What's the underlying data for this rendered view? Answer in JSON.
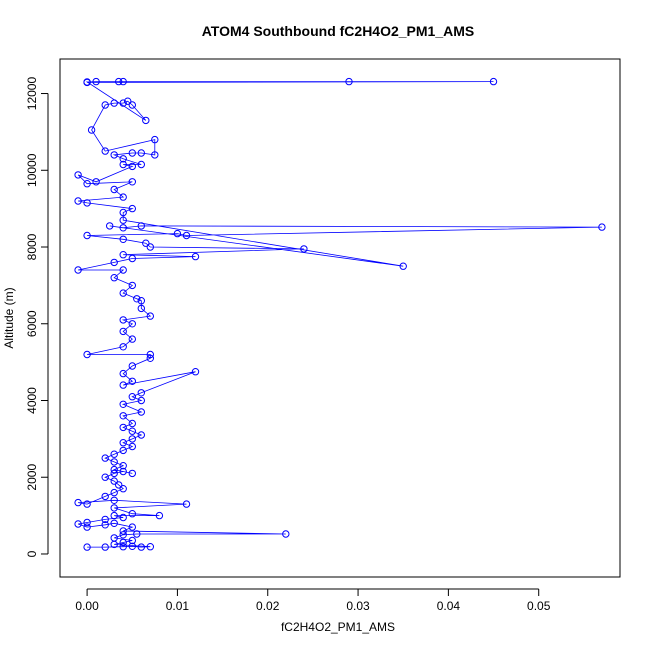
{
  "chart_data": {
    "type": "scatter",
    "title": "ATOM4 Southbound fC2H4O2_PM1_AMS",
    "xlabel": "fC2H4O2_PM1_AMS",
    "ylabel": "Altitude (m)",
    "xlim": [
      -0.003,
      0.059
    ],
    "ylim": [
      -600,
      12900
    ],
    "x_ticks": [
      0.0,
      0.01,
      0.02,
      0.03,
      0.04,
      0.05
    ],
    "x_tick_labels": [
      "0.00",
      "0.01",
      "0.02",
      "0.03",
      "0.04",
      "0.05"
    ],
    "y_ticks": [
      0,
      2000,
      4000,
      6000,
      8000,
      10000,
      12000
    ],
    "y_tick_labels": [
      "0",
      "2000",
      "4000",
      "6000",
      "8000",
      "10000",
      "12000"
    ],
    "grid": false,
    "legend": "none",
    "series": [
      {
        "color": "#0000ff",
        "marker": "open-circle",
        "connected": true,
        "points": [
          [
            0.0,
            180
          ],
          [
            0.002,
            180
          ],
          [
            0.004,
            190
          ],
          [
            0.005,
            200
          ],
          [
            0.006,
            180
          ],
          [
            0.007,
            190
          ],
          [
            0.003,
            250
          ],
          [
            0.004,
            300
          ],
          [
            0.005,
            350
          ],
          [
            0.003,
            420
          ],
          [
            0.004,
            500
          ],
          [
            0.0055,
            520
          ],
          [
            0.022,
            520
          ],
          [
            0.004,
            600
          ],
          [
            0.005,
            700
          ],
          [
            0.003,
            800
          ],
          [
            0.002,
            760
          ],
          [
            0.0,
            700
          ],
          [
            -0.001,
            780
          ],
          [
            0.0,
            820
          ],
          [
            0.002,
            900
          ],
          [
            0.004,
            950
          ],
          [
            0.003,
            1000
          ],
          [
            0.008,
            1000
          ],
          [
            0.005,
            1050
          ],
          [
            0.003,
            1200
          ],
          [
            0.011,
            1300
          ],
          [
            0.003,
            1400
          ],
          [
            -0.001,
            1340
          ],
          [
            0.0,
            1300
          ],
          [
            0.002,
            1500
          ],
          [
            0.003,
            1600
          ],
          [
            0.004,
            1700
          ],
          [
            0.0035,
            1800
          ],
          [
            0.003,
            1900
          ],
          [
            0.002,
            2000
          ],
          [
            0.003,
            2100
          ],
          [
            0.004,
            2150
          ],
          [
            0.005,
            2100
          ],
          [
            0.003,
            2200
          ],
          [
            0.004,
            2300
          ],
          [
            0.003,
            2400
          ],
          [
            0.002,
            2500
          ],
          [
            0.003,
            2600
          ],
          [
            0.004,
            2700
          ],
          [
            0.005,
            2800
          ],
          [
            0.004,
            2900
          ],
          [
            0.005,
            3000
          ],
          [
            0.006,
            3100
          ],
          [
            0.005,
            3200
          ],
          [
            0.004,
            3300
          ],
          [
            0.005,
            3400
          ],
          [
            0.004,
            3600
          ],
          [
            0.006,
            3700
          ],
          [
            0.004,
            3900
          ],
          [
            0.006,
            4000
          ],
          [
            0.005,
            4100
          ],
          [
            0.006,
            4200
          ],
          [
            0.012,
            4750
          ],
          [
            0.004,
            4400
          ],
          [
            0.005,
            4500
          ],
          [
            0.004,
            4700
          ],
          [
            0.005,
            4900
          ],
          [
            0.007,
            5100
          ],
          [
            0.007,
            5200
          ],
          [
            0.0,
            5200
          ],
          [
            0.004,
            5400
          ],
          [
            0.005,
            5600
          ],
          [
            0.004,
            5800
          ],
          [
            0.005,
            6000
          ],
          [
            0.004,
            6100
          ],
          [
            0.007,
            6200
          ],
          [
            0.006,
            6400
          ],
          [
            0.006,
            6600
          ],
          [
            0.0055,
            6650
          ],
          [
            0.004,
            6800
          ],
          [
            0.005,
            7000
          ],
          [
            0.003,
            7200
          ],
          [
            0.004,
            7400
          ],
          [
            -0.001,
            7400
          ],
          [
            0.003,
            7600
          ],
          [
            0.005,
            7700
          ],
          [
            0.012,
            7750
          ],
          [
            0.004,
            7800
          ],
          [
            0.024,
            7950
          ],
          [
            0.007,
            8000
          ],
          [
            0.0065,
            8100
          ],
          [
            0.004,
            8200
          ],
          [
            0.0,
            8300
          ],
          [
            0.01,
            8350
          ],
          [
            0.011,
            8300
          ],
          [
            0.057,
            8520
          ],
          [
            0.006,
            8550
          ],
          [
            0.004,
            8500
          ],
          [
            0.0025,
            8550
          ],
          [
            0.035,
            7500
          ],
          [
            0.004,
            8700
          ],
          [
            0.004,
            8900
          ],
          [
            0.005,
            9000
          ],
          [
            0.0,
            9150
          ],
          [
            -0.001,
            9200
          ],
          [
            0.004,
            9300
          ],
          [
            0.003,
            9500
          ],
          [
            0.005,
            9700
          ],
          [
            0.0,
            9650
          ],
          [
            -0.001,
            9880
          ],
          [
            0.001,
            9700
          ],
          [
            0.005,
            10100
          ],
          [
            0.004,
            10150
          ],
          [
            0.006,
            10150
          ],
          [
            0.004,
            10300
          ],
          [
            0.003,
            10400
          ],
          [
            0.005,
            10450
          ],
          [
            0.006,
            10450
          ],
          [
            0.0075,
            10400
          ],
          [
            0.0075,
            10800
          ],
          [
            0.002,
            10500
          ],
          [
            0.0005,
            11050
          ],
          [
            0.002,
            11700
          ],
          [
            0.003,
            11750
          ],
          [
            0.004,
            11750
          ],
          [
            0.0045,
            11800
          ],
          [
            0.005,
            11700
          ],
          [
            0.0065,
            11300
          ],
          [
            0.0,
            12300
          ],
          [
            0.001,
            12310
          ],
          [
            0.0035,
            12310
          ],
          [
            0.004,
            12310
          ],
          [
            0.029,
            12310
          ],
          [
            0.045,
            12310
          ],
          [
            0.0,
            12290
          ]
        ]
      }
    ]
  }
}
